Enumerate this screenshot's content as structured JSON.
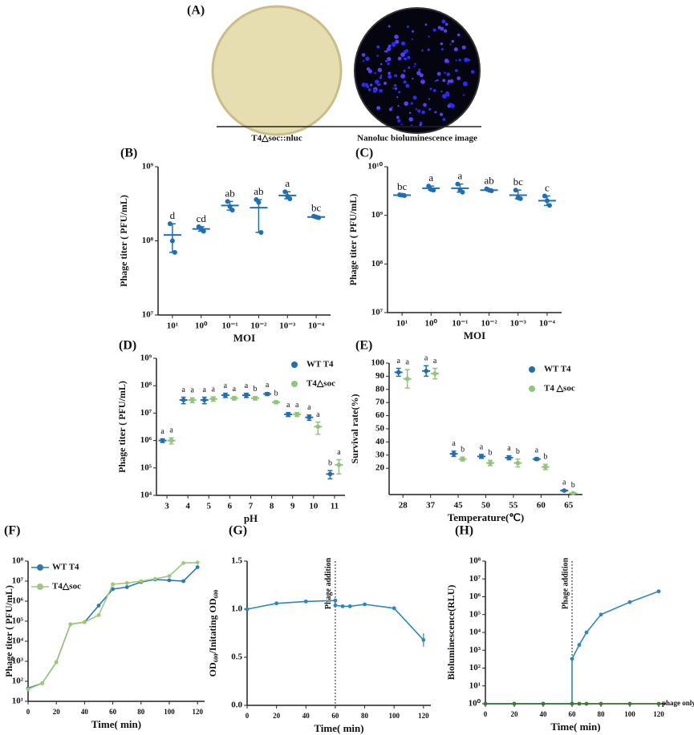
{
  "figure": {
    "label": "(A)",
    "captions": [
      "T4△soc::nluc",
      "Nanoluc  bioluminescence image"
    ]
  },
  "chart_data": [
    {
      "type": "dotplot",
      "panel": "(B)",
      "y_label": "Phage titer ( PFU/mL)",
      "x_label": "MOI",
      "log_y": true,
      "ylim": [
        10000000,
        1000000000
      ],
      "yticks": [
        {
          "value": 10000000,
          "label": "10⁷"
        },
        {
          "value": 100000000,
          "label": "10⁸"
        },
        {
          "value": 1000000000,
          "label": "10⁹"
        }
      ],
      "categories": [
        "10¹",
        "10⁰",
        "10⁻¹",
        "10⁻²",
        "10⁻³",
        "10⁻⁴"
      ],
      "series": [
        {
          "color": "#1f6fb2",
          "values": [
            120000000,
            145000000,
            300000000,
            280000000,
            410000000,
            210000000
          ],
          "points": [
            [
              170000000,
              100000000,
              70000000
            ],
            [
              155000000,
              145000000,
              135000000
            ],
            [
              340000000,
              290000000,
              260000000
            ],
            [
              360000000,
              330000000,
              130000000
            ],
            [
              460000000,
              400000000,
              370000000
            ],
            [
              215000000,
              210000000,
              205000000
            ]
          ],
          "letters": [
            "d",
            "cd",
            "ab",
            "ab",
            "a",
            "bc"
          ]
        }
      ]
    },
    {
      "type": "dotplot",
      "panel": "(C)",
      "y_label": "Phage titer ( PFU/mL)",
      "x_label": "MOI",
      "log_y": true,
      "ylim": [
        10000000,
        10000000000
      ],
      "yticks": [
        {
          "value": 10000000,
          "label": "10⁷"
        },
        {
          "value": 100000000,
          "label": "10⁸"
        },
        {
          "value": 1000000000,
          "label": "10⁹"
        },
        {
          "value": 10000000000,
          "label": "10¹⁰"
        }
      ],
      "categories": [
        "10¹",
        "10⁰",
        "10⁻¹",
        "10⁻²",
        "10⁻³",
        "10⁻⁴"
      ],
      "series": [
        {
          "color": "#1f6fb2",
          "values": [
            2600000000,
            3600000000,
            3600000000,
            3300000000,
            2600000000,
            2000000000
          ],
          "points": [
            [
              2650000000,
              2600000000,
              2550000000
            ],
            [
              4000000000,
              3400000000,
              3300000000
            ],
            [
              4400000000,
              3300000000,
              3000000000
            ],
            [
              3500000000,
              3300000000,
              3200000000
            ],
            [
              3300000000,
              2300000000,
              2200000000
            ],
            [
              2500000000,
              2000000000,
              1600000000
            ]
          ],
          "letters": [
            "bc",
            "a",
            "a",
            "ab",
            "bc",
            "c"
          ]
        }
      ]
    },
    {
      "type": "dotplot",
      "panel": "(D)",
      "y_label": "Phage titer ( PFU/mL)",
      "x_label": "pH",
      "log_y": true,
      "legend": "top-right",
      "ylim": [
        10000,
        1000000000
      ],
      "yticks": [
        {
          "value": 10000,
          "label": "10⁴"
        },
        {
          "value": 100000,
          "label": "10⁵"
        },
        {
          "value": 1000000,
          "label": "10⁶"
        },
        {
          "value": 10000000,
          "label": "10⁷"
        },
        {
          "value": 100000000,
          "label": "10⁸"
        },
        {
          "value": 1000000000,
          "label": "10⁹"
        }
      ],
      "categories": [
        "3",
        "4",
        "5",
        "6",
        "7",
        "8",
        "9",
        "10",
        "11"
      ],
      "series": [
        {
          "name": "WT T4",
          "color": "#1f6fb2",
          "values": [
            1000000,
            30000000,
            30000000,
            45000000,
            45000000,
            50000000,
            9000000,
            7000000,
            60000
          ],
          "errors": [
            150000,
            8000000,
            8000000,
            8000000,
            8000000,
            6000000,
            1500000,
            1500000,
            20000
          ],
          "letters": [
            "a",
            "a",
            "a",
            "a",
            "a",
            "a",
            "a",
            "a",
            "b"
          ]
        },
        {
          "name": "T4△soc",
          "color": "#92c47c",
          "values": [
            1000000,
            30000000,
            33000000,
            35000000,
            35000000,
            25000000,
            9000000,
            3200000,
            130000
          ],
          "errors": [
            250000,
            6000000,
            6000000,
            5000000,
            5000000,
            3000000,
            1500000,
            1500000,
            70000
          ],
          "letters": [
            "a",
            "a",
            "a",
            "a",
            "b",
            "b",
            "a",
            "a",
            "a"
          ]
        }
      ]
    },
    {
      "type": "dotplot",
      "panel": "(E)",
      "y_label": "Survival rate(%)",
      "x_label": "Temperature(℃)",
      "legend": "top-right",
      "ylim": [
        0,
        100
      ],
      "yticks": [
        20,
        30,
        40,
        50,
        60,
        70,
        80,
        90,
        100
      ],
      "categories": [
        "28",
        "37",
        "45",
        "50",
        "55",
        "60",
        "65"
      ],
      "series": [
        {
          "name": "WT T4",
          "color": "#1f6fb2",
          "values": [
            93,
            94,
            31,
            29,
            28,
            27,
            3
          ],
          "errors": [
            3,
            4,
            2,
            1.5,
            1.5,
            1,
            0.5
          ],
          "letters": [
            "a",
            "a",
            "a",
            "a",
            "a",
            "a",
            "a"
          ]
        },
        {
          "name": "T4 △soc",
          "color": "#92c47c",
          "values": [
            88,
            92,
            27,
            24,
            24,
            21,
            1
          ],
          "errors": [
            7,
            4,
            1.5,
            2,
            3,
            2,
            0.5
          ],
          "letters": [
            "a",
            "a",
            "b",
            "b",
            "b",
            "b",
            "b"
          ]
        }
      ]
    },
    {
      "type": "line",
      "panel": "(F)",
      "y_label": "Phage titer ( PFU/mL)",
      "x_label": "Time( min)",
      "log_y": true,
      "legend": "top-left",
      "xlim": [
        0,
        125
      ],
      "xticks": [
        0,
        20,
        40,
        60,
        80,
        100,
        120
      ],
      "ylim": [
        10,
        100000000
      ],
      "yticks": [
        {
          "value": 10,
          "label": "10¹"
        },
        {
          "value": 100,
          "label": "10²"
        },
        {
          "value": 1000,
          "label": "10³"
        },
        {
          "value": 10000,
          "label": "10⁴"
        },
        {
          "value": 100000,
          "label": "10⁵"
        },
        {
          "value": 1000000,
          "label": "10⁶"
        },
        {
          "value": 10000000,
          "label": "10⁷"
        },
        {
          "value": 100000000,
          "label": "10⁸"
        }
      ],
      "x": [
        0,
        10,
        20,
        30,
        40,
        50,
        60,
        70,
        80,
        90,
        100,
        110,
        120
      ],
      "series": [
        {
          "name": "WT T4",
          "color": "#2a7ab0",
          "values": [
            45,
            80,
            900,
            70000,
            90000,
            600000,
            4000000,
            5000000,
            9000000,
            12000000,
            11000000,
            10000000,
            50000000
          ]
        },
        {
          "name": "T4△soc",
          "color": "#9cc97c",
          "values": [
            40,
            80,
            900,
            70000,
            90000,
            200000,
            7000000,
            8000000,
            10000000,
            13000000,
            18000000,
            80000000,
            85000000
          ]
        }
      ]
    },
    {
      "type": "line",
      "panel": "(G)",
      "y_label": "OD₆₀₀/Initating  OD₆₀₀",
      "x_label": "Time( min)",
      "xlim": [
        0,
        125
      ],
      "xticks": [
        0,
        20,
        40,
        60,
        80,
        100,
        120
      ],
      "ylim": [
        0,
        1.5
      ],
      "yticks": [
        {
          "value": 0,
          "label": "0.0"
        },
        0.5,
        {
          "value": 1,
          "label": "1.0"
        },
        1.5
      ],
      "annotation": {
        "text": "Phage addition",
        "x": 60
      },
      "x": [
        0,
        20,
        40,
        60,
        60,
        65,
        70,
        80,
        100,
        120
      ],
      "series": [
        {
          "color": "#2e86c1",
          "values": [
            1.0,
            1.06,
            1.08,
            1.09,
            1.04,
            1.03,
            1.03,
            1.05,
            1.01,
            0.68
          ],
          "errors": [
            0.01,
            0.01,
            0.01,
            0.01,
            0.02,
            0.01,
            0.01,
            0.01,
            0.02,
            0.07
          ]
        }
      ]
    },
    {
      "type": "line",
      "panel": "(H)",
      "y_label": "Bioluminescence(RLU)",
      "x_label": "Time( min)",
      "log_y": true,
      "legend": "end",
      "xlim": [
        0,
        125
      ],
      "xticks": [
        0,
        20,
        40,
        60,
        80,
        100,
        120
      ],
      "ylim": [
        1,
        100000000
      ],
      "yticks": [
        {
          "value": 1,
          "label": "10⁰"
        },
        {
          "value": 10,
          "label": "10¹"
        },
        {
          "value": 100,
          "label": "10²"
        },
        {
          "value": 1000,
          "label": "10³"
        },
        {
          "value": 10000,
          "label": "10⁴"
        },
        {
          "value": 100000,
          "label": "10⁵"
        },
        {
          "value": 1000000,
          "label": "10⁶"
        },
        {
          "value": 10000000,
          "label": "10⁷"
        },
        {
          "value": 100000000,
          "label": "10⁸"
        }
      ],
      "annotation": {
        "text": "Phage addition",
        "x": 60
      },
      "x": [
        0,
        20,
        40,
        60,
        60,
        65,
        70,
        80,
        100,
        120
      ],
      "series": [
        {
          "color": "#2e86c1",
          "values": [
            1,
            1,
            1,
            1,
            330,
            2000,
            10000,
            100000,
            500000,
            2000000
          ]
        },
        {
          "name": "phage only",
          "color": "#3a7d2e",
          "values": [
            1,
            1,
            1,
            1,
            1,
            1,
            1,
            1,
            1,
            1
          ]
        }
      ]
    }
  ]
}
